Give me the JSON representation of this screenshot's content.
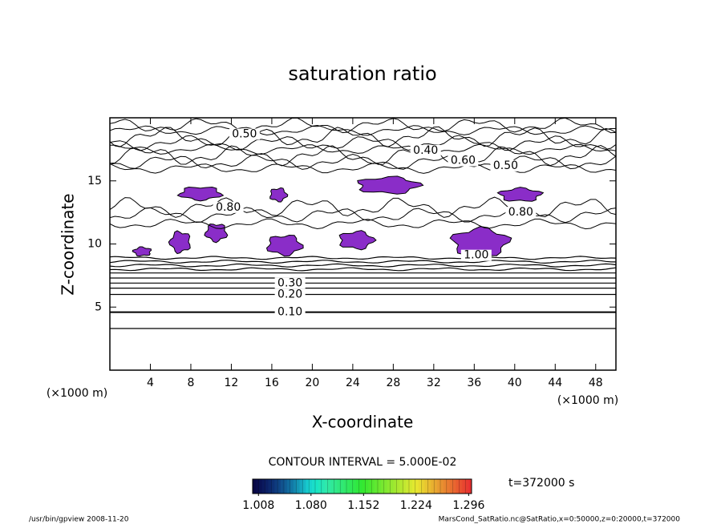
{
  "chart_data": {
    "type": "contour",
    "title": "saturation ratio",
    "xlabel": "X-coordinate",
    "ylabel": "Z-coordinate",
    "x_unit": "(×1000 m)",
    "y_unit": "(×1000 m)",
    "xlim": [
      0,
      50
    ],
    "ylim": [
      0,
      20
    ],
    "xticks": [
      4,
      8,
      12,
      16,
      20,
      24,
      28,
      32,
      36,
      40,
      44,
      48
    ],
    "yticks": [
      5,
      10,
      15
    ],
    "contour_interval_text": "CONTOUR INTERVAL = 5.000E-02",
    "time_text": "t=372000 s",
    "footer_left": "/usr/bin/gpview  2008-11-20",
    "footer_right": "MarsCond_SatRatio.nc@SatRatio,x=0:50000,z=0:20000,t=372000",
    "line_color": "#000000",
    "lower_lines": [
      3.3,
      4.6,
      6.0,
      6.5,
      6.9,
      7.3,
      7.7,
      8.0,
      8.3,
      8.6,
      8.9
    ],
    "upper_lines": [
      11.6,
      12.3,
      12.9,
      16.0,
      16.5,
      17.0,
      17.5,
      18.0,
      18.5,
      19.0,
      19.4
    ],
    "contour_labels": [
      {
        "level": {
          "value": 0.1,
          "label": "0.10"
        },
        "x": 17.8,
        "z": 4.6
      },
      {
        "level": {
          "value": 0.2,
          "label": "0.20"
        },
        "x": 17.8,
        "z": 6.0
      },
      {
        "level": {
          "value": 0.3,
          "label": "0.30"
        },
        "x": 17.8,
        "z": 6.9
      },
      {
        "level": {
          "value": 0.5,
          "label": "0.50"
        },
        "x": 13.3,
        "z": 18.7
      },
      {
        "level": {
          "value": 0.4,
          "label": "0.40"
        },
        "x": 31.2,
        "z": 17.4
      },
      {
        "level": {
          "value": 0.6,
          "label": "0.60"
        },
        "x": 34.9,
        "z": 16.6
      },
      {
        "level": {
          "value": 0.5,
          "label": "0.50"
        },
        "x": 39.1,
        "z": 16.2
      },
      {
        "level": {
          "value": 0.8,
          "label": "0.80"
        },
        "x": 40.6,
        "z": 12.5
      },
      {
        "level": {
          "value": 0.8,
          "label": "0.80"
        },
        "x": 11.7,
        "z": 12.9
      },
      {
        "level": {
          "value": 1.0,
          "label": "1.00"
        },
        "x": 36.2,
        "z": 9.1
      }
    ],
    "region_color": "#8a2dc8",
    "regions": [
      {
        "x": [
          6.6,
          11.3
        ],
        "z": [
          13.4,
          14.6
        ]
      },
      {
        "x": [
          15.7,
          17.6
        ],
        "z": [
          13.3,
          14.5
        ]
      },
      {
        "x": [
          24.0,
          31.0
        ],
        "z": [
          13.9,
          15.4
        ]
      },
      {
        "x": [
          38.2,
          42.9
        ],
        "z": [
          13.3,
          14.5
        ]
      },
      {
        "x": [
          2.2,
          4.2
        ],
        "z": [
          9.0,
          9.8
        ]
      },
      {
        "x": [
          5.8,
          8.1
        ],
        "z": [
          9.2,
          11.1
        ]
      },
      {
        "x": [
          9.3,
          11.7
        ],
        "z": [
          10.1,
          11.7
        ]
      },
      {
        "x": [
          15.3,
          19.2
        ],
        "z": [
          9.0,
          10.8
        ]
      },
      {
        "x": [
          22.4,
          26.3
        ],
        "z": [
          9.5,
          11.1
        ]
      },
      {
        "x": [
          33.4,
          39.8
        ],
        "z": [
          8.9,
          11.4
        ]
      }
    ],
    "colorbar_lim": [
      1.0,
      1.3
    ],
    "colorbar_ticks": [
      1.008,
      {
        "value": 1.08,
        "label": "1.080"
      },
      1.152,
      1.224,
      1.296
    ]
  }
}
